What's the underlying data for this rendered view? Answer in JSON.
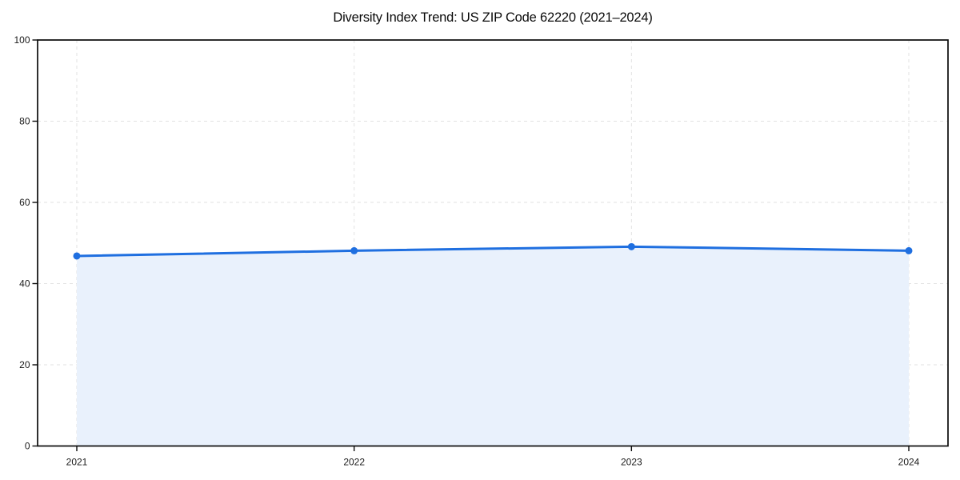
{
  "chart_data": {
    "type": "area",
    "title": "Diversity Index Trend: US ZIP Code 62220 (2021–2024)",
    "xlabel": "",
    "ylabel": "",
    "x": [
      "2021",
      "2022",
      "2023",
      "2024"
    ],
    "series": [
      {
        "name": "Diversity Index",
        "values": [
          46.8,
          48.1,
          49.1,
          48.1
        ]
      }
    ],
    "ylim": [
      0,
      100
    ],
    "y_ticks": [
      0,
      20,
      40,
      60,
      80,
      100
    ],
    "grid": "dashed",
    "legend": "none",
    "marker": "circle",
    "colors": {
      "line": "#1f6fe0",
      "marker": "#1f6fe0",
      "fill": "#e9f1fc",
      "grid": "#e2e2e2",
      "axis": "#0a0a0a",
      "tick_label": "#1a1a1a",
      "background": "#ffffff"
    }
  }
}
